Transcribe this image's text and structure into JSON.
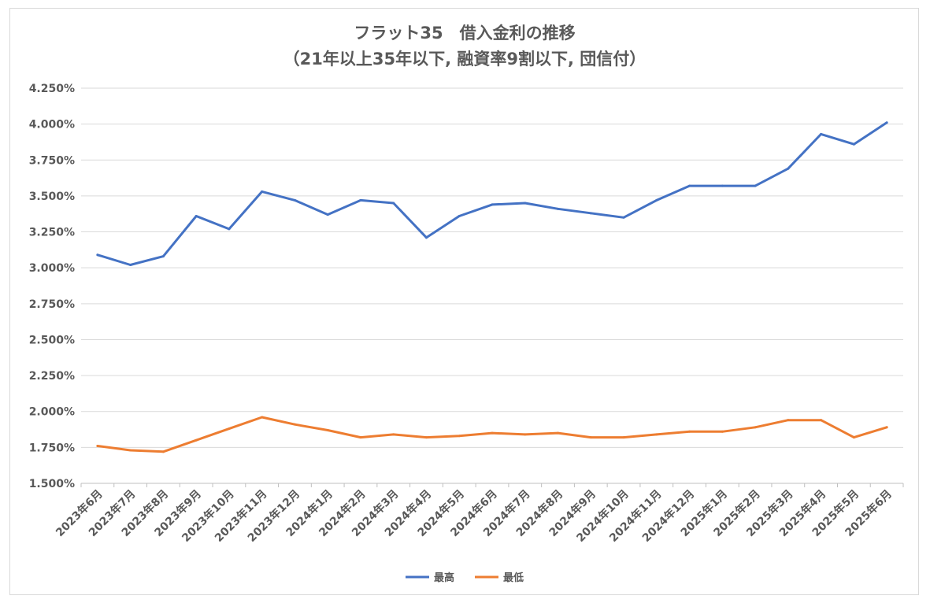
{
  "chart_data": {
    "type": "line",
    "title": "フラット35　借入金利の推移",
    "subtitle": "（21年以上35年以下, 融資率9割以下, 団信付）",
    "xlabel": "",
    "ylabel": "",
    "ylim": [
      1.5,
      4.25
    ],
    "y_ticks": [
      "1.500%",
      "1.750%",
      "2.000%",
      "2.250%",
      "2.500%",
      "2.750%",
      "3.000%",
      "3.250%",
      "3.500%",
      "3.750%",
      "4.000%",
      "4.250%"
    ],
    "grid": true,
    "legend_position": "bottom",
    "categories": [
      "2023年6月",
      "2023年7月",
      "2023年8月",
      "2023年9月",
      "2023年10月",
      "2023年11月",
      "2023年12月",
      "2024年1月",
      "2024年2月",
      "2024年3月",
      "2024年4月",
      "2024年5月",
      "2024年6月",
      "2024年7月",
      "2024年8月",
      "2024年9月",
      "2024年10月",
      "2024年11月",
      "2024年12月",
      "2025年1月",
      "2025年2月",
      "2025年3月",
      "2025年4月",
      "2025年5月",
      "2025年6月"
    ],
    "series": [
      {
        "name": "最高",
        "color": "#4472c4",
        "values": [
          3.09,
          3.02,
          3.08,
          3.36,
          3.27,
          3.53,
          3.47,
          3.37,
          3.47,
          3.45,
          3.21,
          3.36,
          3.44,
          3.45,
          3.41,
          3.38,
          3.35,
          3.47,
          3.57,
          3.57,
          3.57,
          3.69,
          3.93,
          3.86,
          4.01
        ]
      },
      {
        "name": "最低",
        "color": "#ed7d31",
        "values": [
          1.76,
          1.73,
          1.72,
          1.8,
          1.88,
          1.96,
          1.91,
          1.87,
          1.82,
          1.84,
          1.82,
          1.83,
          1.85,
          1.84,
          1.85,
          1.82,
          1.82,
          1.84,
          1.86,
          1.86,
          1.89,
          1.94,
          1.94,
          1.82,
          1.89
        ]
      }
    ]
  }
}
